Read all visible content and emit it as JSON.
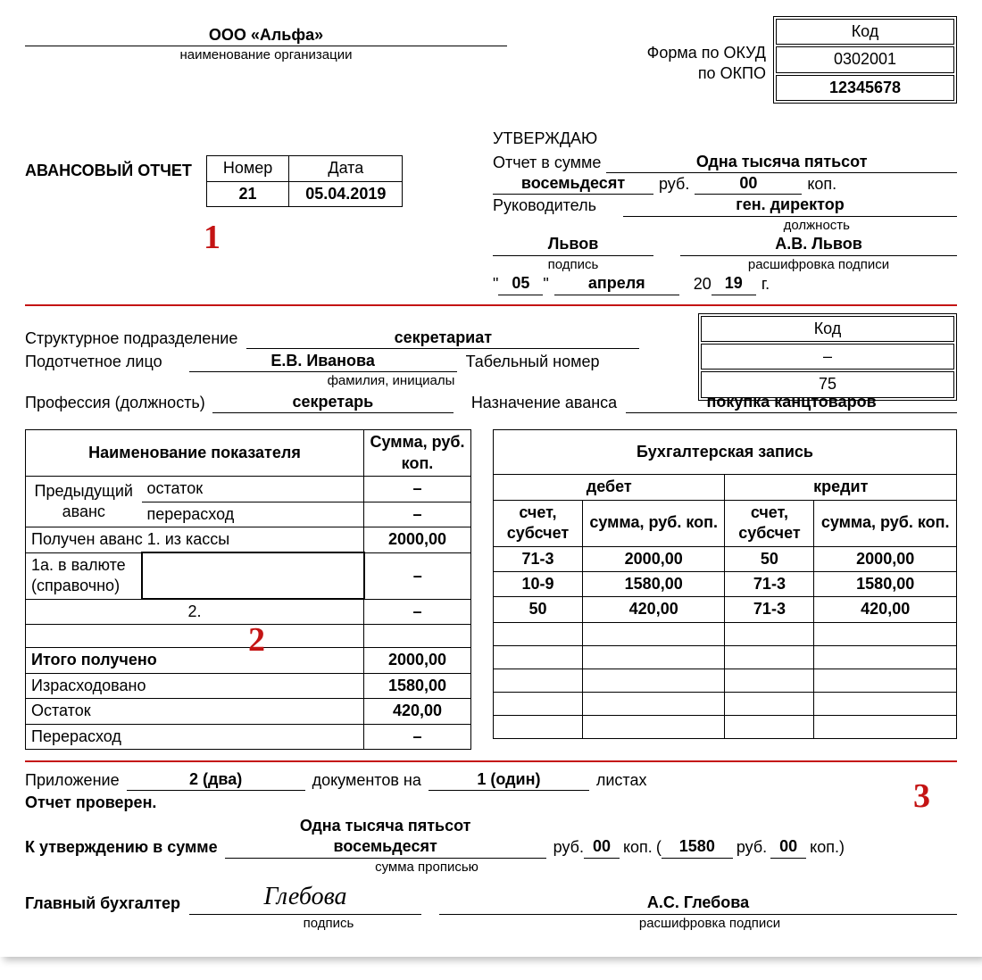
{
  "org_name": "ООО «Альфа»",
  "org_caption": "наименование организации",
  "form_okud_label": "Форма по ОКУД",
  "po_okpo_label": "по ОКПО",
  "code_header": "Код",
  "okud_code": "0302001",
  "okpo_code": "12345678",
  "approve_title": "УТВЕРЖДАЮ",
  "amount_label": "Отчет в сумме",
  "amount_words_1": "Одна тысяча пятьсот",
  "amount_words_2": "восемьдесят",
  "rub_label": "руб.",
  "kop_label": "коп.",
  "amount_kop": "00",
  "head_label": "Руководитель",
  "head_position": "ген. директор",
  "position_caption": "должность",
  "head_sign": "Львов",
  "head_sign_caption": "подпись",
  "head_name": "А.В. Львов",
  "head_name_caption": "расшифровка подписи",
  "date_day": "05",
  "date_month": "апреля",
  "date_year": "19",
  "year_prefix": "20",
  "year_suffix": "г.",
  "report_title": "АВАНСОВЫЙ ОТЧЕТ",
  "num_label": "Номер",
  "date_label": "Дата",
  "report_number": "21",
  "report_date": "05.04.2019",
  "mark1": "1",
  "mark2": "2",
  "mark3": "3",
  "dept_label": "Структурное подразделение",
  "dept_value": "секретариат",
  "person_label": "Подотчетное лицо",
  "person_value": "Е.В. Иванова",
  "person_caption": "фамилия, инициалы",
  "tabnum_label": "Табельный номер",
  "tabnum_value": "75",
  "prof_label": "Профессия (должность)",
  "prof_value": "секретарь",
  "advance_purpose_label": "Назначение аванса",
  "advance_purpose_value": "покупка канцтоваров",
  "code_header2": "Код",
  "dept_code": "–",
  "left_table": {
    "h1": "Наименование показателя",
    "h2": "Сумма, руб. коп.",
    "r1a": "Предыдущий",
    "r1b": "остаток",
    "r1v": "–",
    "r2a": "аванс",
    "r2b": "перерасход",
    "r2v": "–",
    "r3": "Получен аванс 1. из кассы",
    "r3v": "2000,00",
    "r4": "1а. в валюте (справочно)",
    "r4v": "–",
    "r5": "2.",
    "r5v": "–",
    "r6": "",
    "r6v": "",
    "r7": "Итого получено",
    "r7v": "2000,00",
    "r8": "Израсходовано",
    "r8v": "1580,00",
    "r9": "Остаток",
    "r9v": "420,00",
    "r10": "Перерасход",
    "r10v": "–"
  },
  "right_table": {
    "title": "Бухгалтерская запись",
    "debit": "дебет",
    "credit": "кредит",
    "acct": "счет, субсчет",
    "sum": "сумма, руб. коп.",
    "rows": [
      {
        "da": "71-3",
        "ds": "2000,00",
        "ca": "50",
        "cs": "2000,00"
      },
      {
        "da": "10-9",
        "ds": "1580,00",
        "ca": "71-3",
        "cs": "1580,00"
      },
      {
        "da": "50",
        "ds": "420,00",
        "ca": "71-3",
        "cs": "420,00"
      },
      {
        "da": "",
        "ds": "",
        "ca": "",
        "cs": ""
      },
      {
        "da": "",
        "ds": "",
        "ca": "",
        "cs": ""
      },
      {
        "da": "",
        "ds": "",
        "ca": "",
        "cs": ""
      },
      {
        "da": "",
        "ds": "",
        "ca": "",
        "cs": ""
      },
      {
        "da": "",
        "ds": "",
        "ca": "",
        "cs": ""
      }
    ]
  },
  "attach_label": "Приложение",
  "attach_count": "2 (два)",
  "attach_docs": "документов на",
  "attach_sheets": "1 (один)",
  "attach_sheets_label": "листах",
  "checked_label": "Отчет проверен.",
  "to_approve_label": "К утверждению в сумме",
  "to_approve_words1": "Одна тысяча пятьсот",
  "to_approve_words2": "восемьдесят",
  "to_approve_rub": "00",
  "to_approve_num": "1580",
  "to_approve_num_kop": "00",
  "sum_caption": "сумма прописью",
  "chief_acc_label": "Главный бухгалтер",
  "chief_acc_sign": "Глебова",
  "chief_acc_name": "А.С. Глебова",
  "sign_caption": "подпись",
  "decode_caption": "расшифровка подписи"
}
